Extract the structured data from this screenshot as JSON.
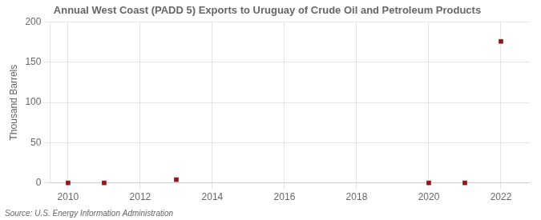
{
  "chart_data": {
    "type": "scatter",
    "title": "Annual West Coast (PADD 5) Exports to Uruguay of Crude Oil and Petroleum Products",
    "ylabel": "Thousand Barrels",
    "source": "Source: U.S. Energy Information Administration",
    "x": [
      2010,
      2011,
      2013,
      2020,
      2021,
      2022
    ],
    "values": [
      0,
      0,
      4,
      0,
      0,
      176
    ],
    "color": "#8b1a1a",
    "marker": "square",
    "xlim": [
      2009.5,
      2022.8
    ],
    "xticks": [
      2010,
      2012,
      2014,
      2016,
      2018,
      2020,
      2022
    ],
    "ylim": [
      0,
      200
    ],
    "yticks": [
      0,
      50,
      100,
      150,
      200
    ],
    "grid": true
  }
}
